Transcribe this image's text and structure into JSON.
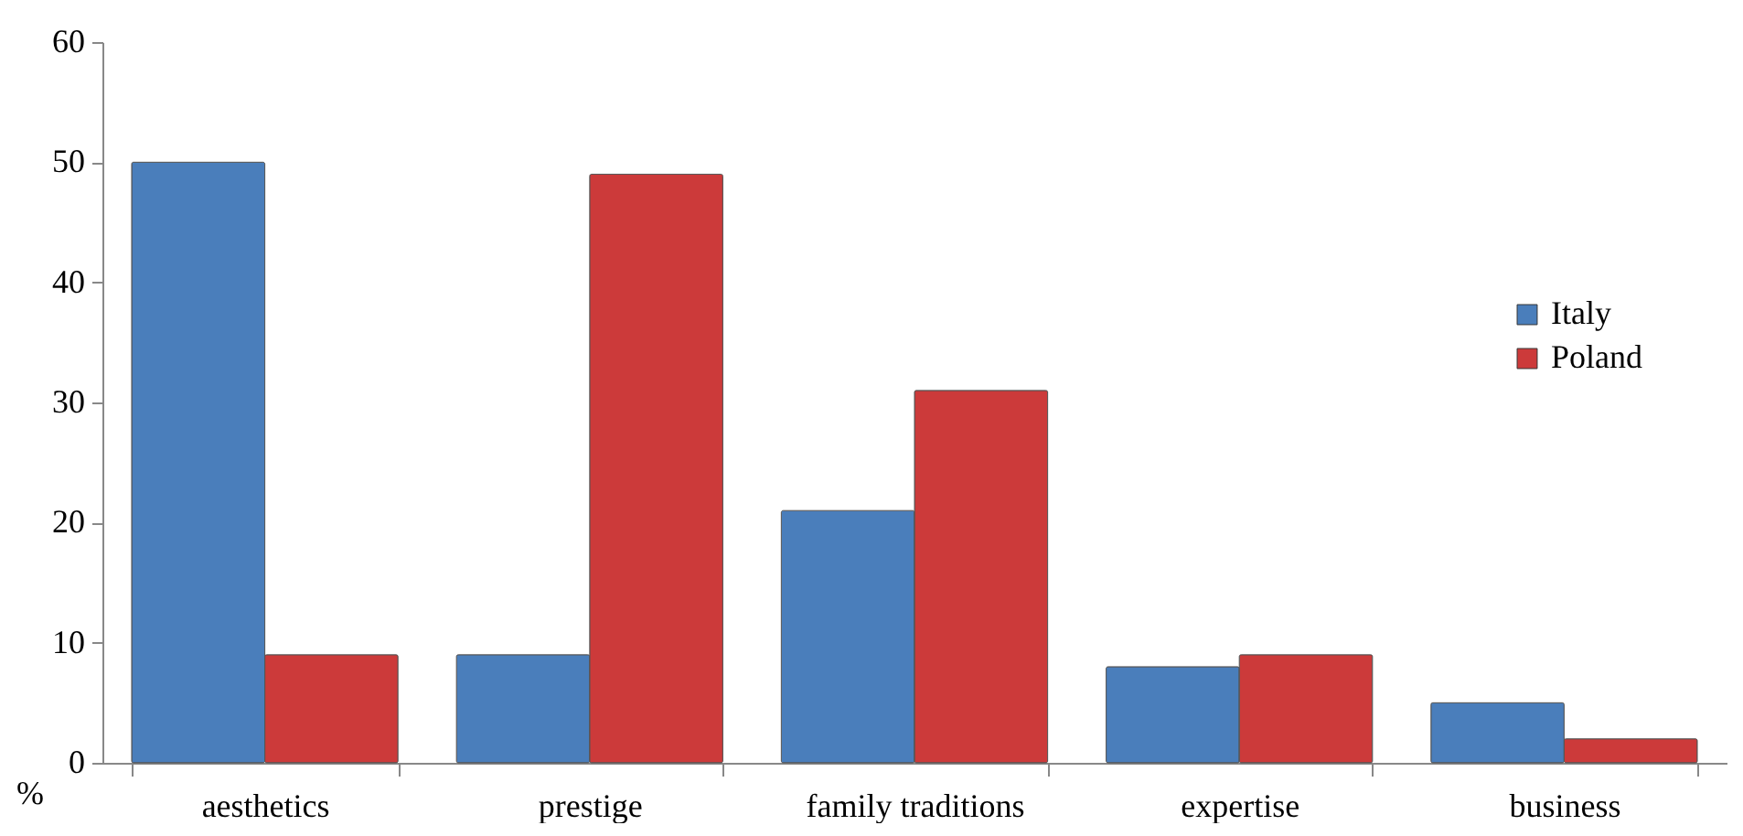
{
  "chart_data": {
    "type": "bar",
    "ylabel": "%",
    "categories": [
      "aesthetics",
      "prestige",
      "family traditions",
      "expertise",
      "business"
    ],
    "series": [
      {
        "name": "Italy",
        "color": "#4a7ebb",
        "values": [
          50,
          9,
          21,
          8,
          5
        ]
      },
      {
        "name": "Poland",
        "color": "#cc3a3a",
        "values": [
          9,
          49,
          31,
          9,
          2
        ]
      }
    ],
    "ylim": [
      0,
      60
    ],
    "yticks": [
      0,
      10,
      20,
      30,
      40,
      50,
      60
    ],
    "grid": false,
    "legend": "right"
  }
}
